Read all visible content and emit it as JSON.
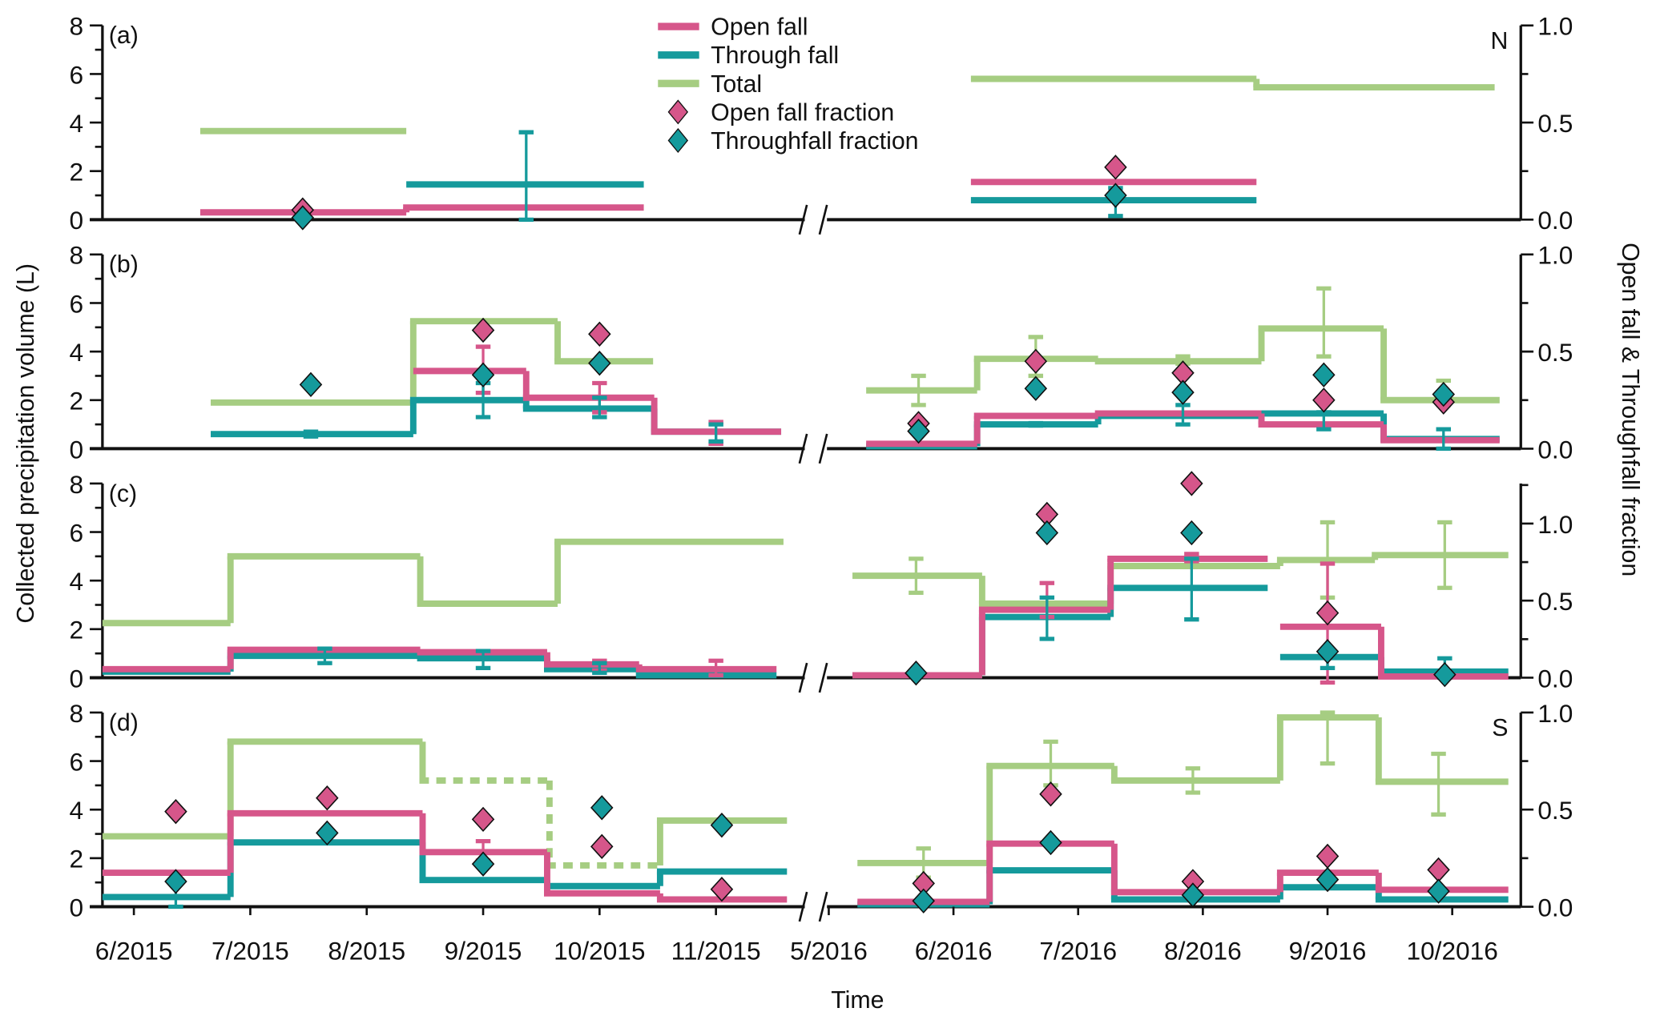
{
  "chart_data": {
    "type": "line",
    "subtype": "step with error bars and fraction markers",
    "colors": {
      "open": "#d6568a",
      "through": "#159a9c",
      "total": "#a6cd82"
    },
    "legend": {
      "position": "top-center",
      "entries": [
        "Open fall",
        "Through fall",
        "Total",
        "Open fall fraction",
        "Throughfall fraction"
      ]
    },
    "xlabel": "Time",
    "ylabel": "Collected precipitation volume (L)",
    "y2label": "Open fall & Throughfall fraction",
    "x_units": "month index since 1/2015 (13 = 1/2016)",
    "x_segments": [
      {
        "xlim": [
          5.73,
          11.79
        ]
      },
      {
        "xlim": [
          16.96,
          22.55
        ]
      }
    ],
    "x_ticks": [
      {
        "x": 6,
        "label": "6/2015"
      },
      {
        "x": 7,
        "label": "7/2015"
      },
      {
        "x": 8,
        "label": "8/2015"
      },
      {
        "x": 9,
        "label": "9/2015"
      },
      {
        "x": 10,
        "label": "10/2015"
      },
      {
        "x": 11,
        "label": "11/2015"
      },
      {
        "x": 17,
        "label": "5/2016"
      },
      {
        "x": 18,
        "label": "6/2016"
      },
      {
        "x": 19,
        "label": "7/2016"
      },
      {
        "x": 20,
        "label": "8/2016"
      },
      {
        "x": 21,
        "label": "9/2016"
      },
      {
        "x": 22,
        "label": "10/2016"
      }
    ],
    "panels": [
      {
        "label": "(a)",
        "corner": "N",
        "ylim": [
          0,
          8
        ],
        "y_ticks": [
          "0",
          "2",
          "4",
          "6",
          "8"
        ],
        "y2lim": [
          0,
          1.0
        ],
        "y2_ticks": [
          "0.0",
          "0.5",
          "1.0"
        ],
        "total": [
          [
            6.57,
            8.34,
            3.65
          ],
          [
            18.14,
            20.43,
            5.8
          ],
          [
            20.43,
            22.34,
            5.45
          ]
        ],
        "through": [
          [
            8.34,
            10.38,
            1.45
          ],
          [
            18.14,
            20.43,
            0.8
          ]
        ],
        "open": [
          [
            6.57,
            8.34,
            0.3
          ],
          [
            8.34,
            10.38,
            0.5
          ],
          [
            18.14,
            20.43,
            1.55
          ]
        ],
        "errors": [
          {
            "s": "through",
            "x": 9.37,
            "lo": 0,
            "hi": 3.6
          },
          {
            "s": "through",
            "x": 19.3,
            "lo": 0.15,
            "hi": 1.3
          }
        ],
        "open_frac": [
          [
            7.45,
            0.05
          ],
          [
            19.3,
            0.27
          ]
        ],
        "through_frac": [
          [
            7.45,
            0.01
          ],
          [
            19.3,
            0.125
          ]
        ]
      },
      {
        "label": "(b)",
        "corner": "",
        "ylim": [
          0,
          8
        ],
        "y_ticks": [
          "0",
          "2",
          "4",
          "6",
          "8"
        ],
        "y2lim": [
          0,
          1.0
        ],
        "y2_ticks": [
          "0.0",
          "0.5",
          "1.0"
        ],
        "total": [
          [
            6.66,
            8.4,
            1.9
          ],
          [
            8.4,
            9.64,
            5.25
          ],
          [
            9.64,
            10.46,
            3.6
          ],
          [
            17.3,
            18.19,
            2.4
          ],
          [
            18.19,
            19.16,
            3.7
          ],
          [
            19.16,
            20.47,
            3.6
          ],
          [
            20.47,
            21.45,
            4.95
          ],
          [
            21.45,
            22.38,
            2.0
          ]
        ],
        "through": [
          [
            6.66,
            8.4,
            0.6
          ],
          [
            8.4,
            9.37,
            2.0
          ],
          [
            9.37,
            10.47,
            1.65
          ],
          [
            10.47,
            11.56,
            0.7
          ],
          [
            17.3,
            18.19,
            0.1
          ],
          [
            18.19,
            19.16,
            1.0
          ],
          [
            19.16,
            20.47,
            1.35
          ],
          [
            20.47,
            21.45,
            1.45
          ],
          [
            21.45,
            22.38,
            0.4
          ]
        ],
        "open": [
          [
            8.4,
            9.37,
            3.2
          ],
          [
            9.37,
            10.47,
            2.1
          ],
          [
            10.47,
            11.56,
            0.7
          ],
          [
            17.3,
            18.19,
            0.2
          ],
          [
            18.19,
            19.16,
            1.35
          ],
          [
            19.16,
            20.47,
            1.45
          ],
          [
            20.47,
            21.45,
            1.0
          ],
          [
            21.45,
            22.38,
            0.35
          ]
        ],
        "errors": [
          {
            "s": "through",
            "x": 7.52,
            "lo": 0.5,
            "hi": 0.7
          },
          {
            "s": "open",
            "x": 9.0,
            "lo": 2.3,
            "hi": 4.2
          },
          {
            "s": "through",
            "x": 9.0,
            "lo": 1.3,
            "hi": 2.7
          },
          {
            "s": "open",
            "x": 10.0,
            "lo": 1.5,
            "hi": 2.7
          },
          {
            "s": "through",
            "x": 10.0,
            "lo": 1.3,
            "hi": 2.1
          },
          {
            "s": "open",
            "x": 11.0,
            "lo": 0.2,
            "hi": 1.1
          },
          {
            "s": "through",
            "x": 11.0,
            "lo": 0.3,
            "hi": 1.0
          },
          {
            "s": "total",
            "x": 17.72,
            "lo": 1.8,
            "hi": 3.0
          },
          {
            "s": "total",
            "x": 18.66,
            "lo": 3.0,
            "hi": 4.6
          },
          {
            "s": "through",
            "x": 18.66,
            "lo": 0.95,
            "hi": 1.05
          },
          {
            "s": "total",
            "x": 19.84,
            "lo": 3.5,
            "hi": 3.8
          },
          {
            "s": "through",
            "x": 19.84,
            "lo": 1.0,
            "hi": 1.8
          },
          {
            "s": "total",
            "x": 20.97,
            "lo": 3.8,
            "hi": 6.6
          },
          {
            "s": "through",
            "x": 20.97,
            "lo": 0.8,
            "hi": 1.5
          },
          {
            "s": "total",
            "x": 21.93,
            "lo": 1.8,
            "hi": 2.8
          },
          {
            "s": "through",
            "x": 21.93,
            "lo": 0.0,
            "hi": 0.8
          }
        ],
        "open_frac": [
          [
            9.0,
            0.61
          ],
          [
            10.0,
            0.59
          ],
          [
            17.72,
            0.13
          ],
          [
            18.66,
            0.45
          ],
          [
            19.84,
            0.39
          ],
          [
            20.97,
            0.25
          ],
          [
            21.93,
            0.24
          ]
        ],
        "through_frac": [
          [
            7.52,
            0.33
          ],
          [
            9.0,
            0.38
          ],
          [
            10.0,
            0.44
          ],
          [
            17.72,
            0.09
          ],
          [
            18.66,
            0.31
          ],
          [
            19.84,
            0.29
          ],
          [
            20.97,
            0.38
          ],
          [
            21.93,
            0.28
          ]
        ]
      },
      {
        "label": "(c)",
        "corner": "",
        "ylim": [
          0,
          8
        ],
        "y_ticks": [
          "0",
          "2",
          "4",
          "6",
          "8"
        ],
        "y2lim": [
          0,
          1.26
        ],
        "y2_ticks": [
          "0.0",
          "0.5",
          "1.0"
        ],
        "total": [
          [
            5.73,
            6.83,
            2.25
          ],
          [
            6.83,
            8.46,
            5.0
          ],
          [
            8.46,
            9.64,
            3.05
          ],
          [
            9.64,
            11.58,
            5.6
          ],
          [
            17.19,
            18.23,
            4.2
          ],
          [
            18.23,
            19.26,
            3.05
          ],
          [
            19.26,
            20.62,
            4.6
          ],
          [
            20.62,
            21.38,
            4.85
          ],
          [
            21.38,
            22.45,
            5.05
          ]
        ],
        "through": [
          [
            5.73,
            6.83,
            0.25
          ],
          [
            6.83,
            8.46,
            0.9
          ],
          [
            8.46,
            9.55,
            0.8
          ],
          [
            9.55,
            10.34,
            0.35
          ],
          [
            10.34,
            11.52,
            0.1
          ],
          [
            17.19,
            18.23,
            0.1
          ],
          [
            18.23,
            19.26,
            2.5
          ],
          [
            19.26,
            20.52,
            3.7
          ],
          [
            20.62,
            21.43,
            0.85
          ],
          [
            21.43,
            22.45,
            0.25
          ]
        ],
        "open": [
          [
            5.73,
            6.83,
            0.35
          ],
          [
            6.83,
            8.46,
            1.15
          ],
          [
            8.46,
            9.55,
            1.05
          ],
          [
            9.55,
            10.34,
            0.55
          ],
          [
            10.34,
            11.52,
            0.35
          ],
          [
            17.19,
            18.23,
            0.1
          ],
          [
            18.23,
            19.26,
            2.8
          ],
          [
            19.26,
            20.52,
            4.9
          ],
          [
            20.62,
            21.43,
            2.1
          ],
          [
            21.43,
            22.45,
            0.05
          ]
        ],
        "errors": [
          {
            "s": "through",
            "x": 7.64,
            "lo": 0.6,
            "hi": 1.2
          },
          {
            "s": "through",
            "x": 9.0,
            "lo": 0.4,
            "hi": 1.1
          },
          {
            "s": "open",
            "x": 10.0,
            "lo": 0.3,
            "hi": 0.7
          },
          {
            "s": "through",
            "x": 10.0,
            "lo": 0.2,
            "hi": 0.6
          },
          {
            "s": "open",
            "x": 11.0,
            "lo": 0.1,
            "hi": 0.7
          },
          {
            "s": "total",
            "x": 17.7,
            "lo": 3.5,
            "hi": 4.9
          },
          {
            "s": "open",
            "x": 18.75,
            "lo": 2.5,
            "hi": 3.9
          },
          {
            "s": "through",
            "x": 18.75,
            "lo": 1.6,
            "hi": 3.3
          },
          {
            "s": "open",
            "x": 19.91,
            "lo": 4.8,
            "hi": 5.1
          },
          {
            "s": "through",
            "x": 19.91,
            "lo": 2.4,
            "hi": 4.9
          },
          {
            "s": "total",
            "x": 21.0,
            "lo": 3.3,
            "hi": 6.4
          },
          {
            "s": "open",
            "x": 21.0,
            "lo": -0.2,
            "hi": 4.7
          },
          {
            "s": "through",
            "x": 21.0,
            "lo": 0.4,
            "hi": 1.0
          },
          {
            "s": "total",
            "x": 21.94,
            "lo": 3.7,
            "hi": 6.4
          },
          {
            "s": "through",
            "x": 21.94,
            "lo": 0.0,
            "hi": 0.8
          }
        ],
        "open_frac": [
          [
            18.75,
            1.06
          ],
          [
            19.91,
            1.26
          ],
          [
            21.0,
            0.42
          ]
        ],
        "through_frac": [
          [
            17.7,
            0.03
          ],
          [
            18.75,
            0.94
          ],
          [
            19.91,
            0.94
          ],
          [
            21.0,
            0.17
          ],
          [
            21.94,
            0.02
          ]
        ]
      },
      {
        "label": "(d)",
        "corner": "S",
        "ylim": [
          0,
          8
        ],
        "y_ticks": [
          "0",
          "2",
          "4",
          "6",
          "8"
        ],
        "y2lim": [
          0,
          1.0
        ],
        "y2_ticks": [
          "0.0",
          "0.5",
          "1.0"
        ],
        "total": [
          [
            5.73,
            6.83,
            2.9
          ],
          [
            6.83,
            8.48,
            6.8
          ],
          [
            8.48,
            9.57,
            5.2,
            "dashed"
          ],
          [
            9.57,
            10.52,
            1.7,
            "dashed"
          ],
          [
            10.52,
            11.61,
            3.55
          ],
          [
            17.23,
            18.29,
            1.8
          ],
          [
            18.29,
            19.29,
            5.8
          ],
          [
            19.29,
            20.62,
            5.2
          ],
          [
            20.62,
            21.41,
            7.8
          ],
          [
            21.41,
            22.45,
            5.15
          ]
        ],
        "through": [
          [
            5.73,
            6.83,
            0.4
          ],
          [
            6.83,
            8.48,
            2.65
          ],
          [
            8.48,
            9.55,
            1.1
          ],
          [
            9.55,
            10.52,
            0.85
          ],
          [
            10.52,
            11.61,
            1.45
          ],
          [
            17.23,
            18.29,
            0.1
          ],
          [
            18.29,
            19.29,
            1.5
          ],
          [
            19.29,
            20.62,
            0.3
          ],
          [
            20.62,
            21.41,
            0.8
          ],
          [
            21.41,
            22.45,
            0.3
          ]
        ],
        "open": [
          [
            5.73,
            6.83,
            1.4
          ],
          [
            6.83,
            8.48,
            3.85
          ],
          [
            8.48,
            9.55,
            2.25
          ],
          [
            9.55,
            10.52,
            0.55
          ],
          [
            10.52,
            11.61,
            0.3
          ],
          [
            17.23,
            18.29,
            0.2
          ],
          [
            18.29,
            19.29,
            2.6
          ],
          [
            19.29,
            20.62,
            0.6
          ],
          [
            20.62,
            21.41,
            1.4
          ],
          [
            21.41,
            22.45,
            0.7
          ]
        ],
        "errors": [
          {
            "s": "through",
            "x": 6.36,
            "lo": 0.0,
            "hi": 1.0
          },
          {
            "s": "open",
            "x": 9.0,
            "lo": 1.9,
            "hi": 2.7
          },
          {
            "s": "total",
            "x": 17.76,
            "lo": 1.2,
            "hi": 2.4
          },
          {
            "s": "total",
            "x": 18.78,
            "lo": 5.0,
            "hi": 6.8
          },
          {
            "s": "total",
            "x": 19.92,
            "lo": 4.7,
            "hi": 5.7
          },
          {
            "s": "total",
            "x": 21.0,
            "lo": 5.9,
            "hi": 8.0
          },
          {
            "s": "total",
            "x": 21.89,
            "lo": 3.8,
            "hi": 6.3
          }
        ],
        "open_frac": [
          [
            6.36,
            0.49
          ],
          [
            7.66,
            0.56
          ],
          [
            9.0,
            0.45
          ],
          [
            10.02,
            0.31
          ],
          [
            11.05,
            0.09
          ],
          [
            17.76,
            0.12
          ],
          [
            18.78,
            0.58
          ],
          [
            19.92,
            0.13
          ],
          [
            21.0,
            0.26
          ],
          [
            21.89,
            0.19
          ]
        ],
        "through_frac": [
          [
            6.36,
            0.13
          ],
          [
            7.66,
            0.38
          ],
          [
            9.0,
            0.22
          ],
          [
            10.02,
            0.51
          ],
          [
            11.05,
            0.42
          ],
          [
            17.76,
            0.03
          ],
          [
            18.78,
            0.33
          ],
          [
            19.92,
            0.06
          ],
          [
            21.0,
            0.14
          ],
          [
            21.89,
            0.08
          ]
        ]
      }
    ]
  }
}
